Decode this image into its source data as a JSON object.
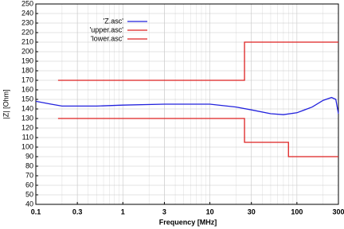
{
  "chart_data": {
    "type": "line",
    "xlabel": "Frequency [MHz]",
    "ylabel": "|Z| [Ohm]",
    "xscale": "log",
    "grid": true,
    "minor_grid": true,
    "legend": "upper center",
    "xlim": [
      0.1,
      300
    ],
    "xticks": [
      0.1,
      0.3,
      1,
      3,
      10,
      30,
      100,
      300
    ],
    "ylim": [
      40,
      250
    ],
    "yticks": [
      40,
      50,
      60,
      70,
      80,
      90,
      100,
      110,
      120,
      130,
      140,
      150,
      160,
      170,
      180,
      190,
      200,
      210,
      220,
      230,
      240,
      250
    ],
    "series": [
      {
        "name": "'Z.asc'",
        "color": "#2222dd",
        "x": [
          0.1,
          0.15,
          0.2,
          0.5,
          1,
          3,
          10,
          20,
          30,
          50,
          70,
          100,
          150,
          200,
          250,
          280,
          300
        ],
        "values": [
          148,
          145,
          143,
          143,
          144,
          145,
          145,
          142,
          139,
          135,
          134,
          136,
          142,
          149,
          152,
          150,
          135
        ]
      },
      {
        "name": "'upper.asc'",
        "color": "#dd2222",
        "x": [
          0.18,
          25,
          25,
          300
        ],
        "values": [
          170,
          170,
          210,
          210
        ]
      },
      {
        "name": "'lower.asc'",
        "color": "#dd2222",
        "x": [
          0.18,
          25,
          25,
          80,
          80,
          300
        ],
        "values": [
          130,
          130,
          105,
          105,
          90,
          90
        ]
      }
    ]
  }
}
